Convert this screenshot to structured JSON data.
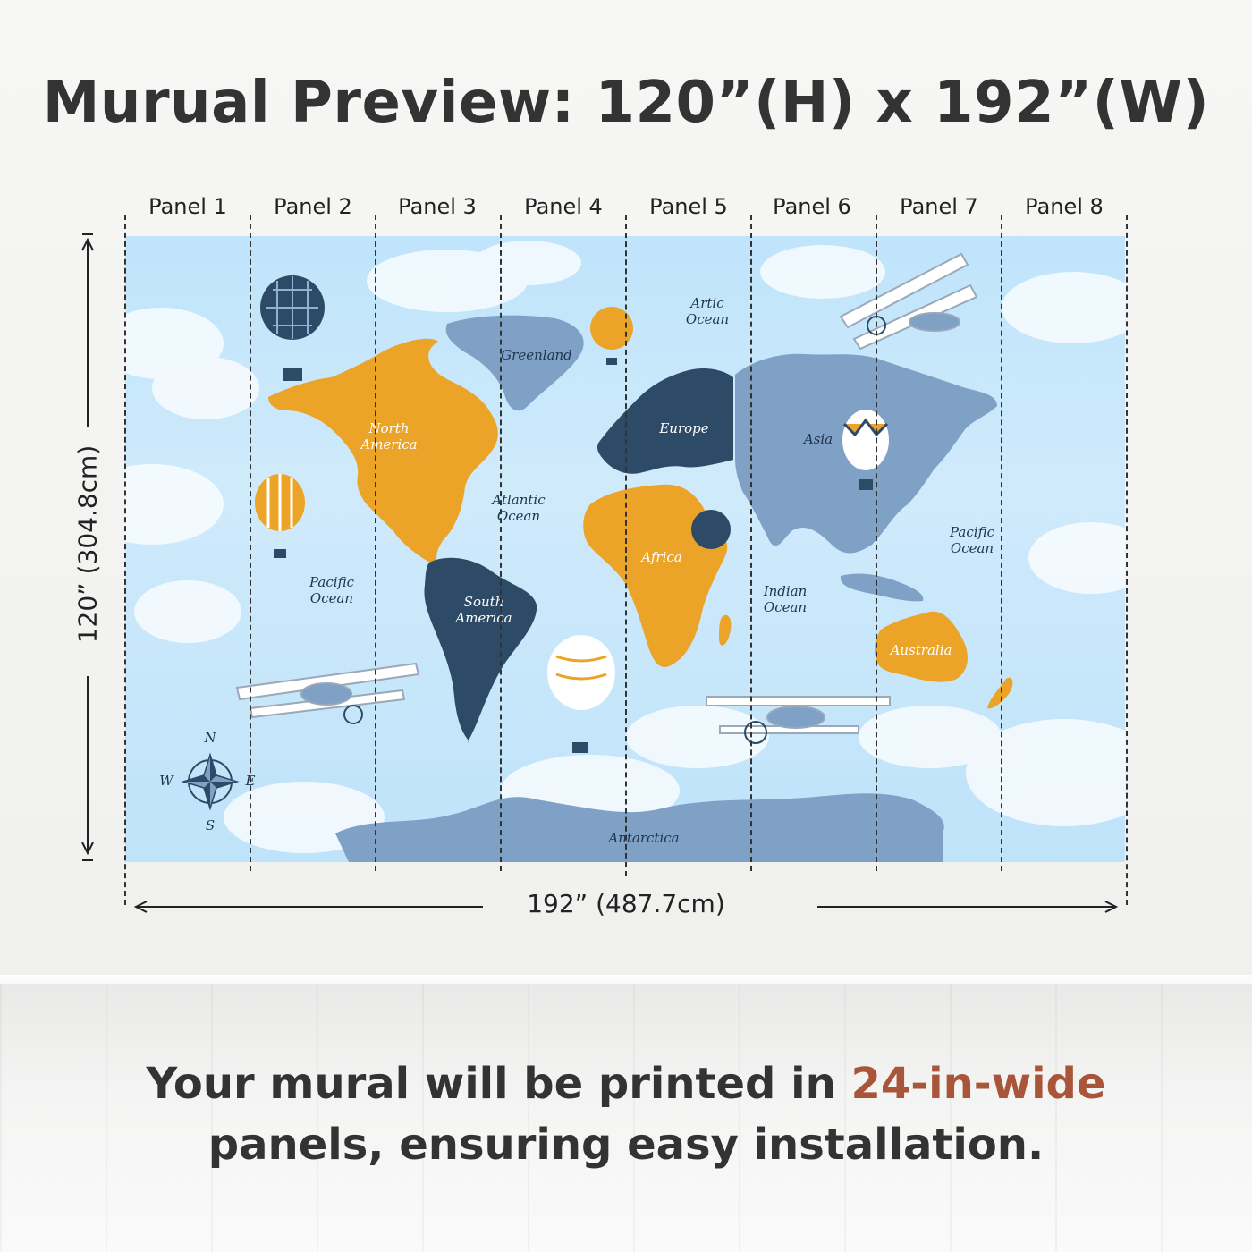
{
  "title": "Murual Preview: 120”(H) x 192”(W)",
  "panels": [
    "Panel 1",
    "Panel 2",
    "Panel 3",
    "Panel 4",
    "Panel 5",
    "Panel 6",
    "Panel 7",
    "Panel 8"
  ],
  "height_dimension": "120” (304.8cm)",
  "width_dimension": "192” (487.7cm)",
  "map_labels": {
    "north_america": "North America",
    "south_america": "South America",
    "europe": "Europe",
    "africa": "Africa",
    "asia": "Asia",
    "australia": "Australia",
    "antarctica": "Antarctica",
    "greenland": "Greenland",
    "arctic_ocean": "Artic Ocean",
    "atlantic_ocean": "Atlantic Ocean",
    "pacific_ocean_left": "Pacific Ocean",
    "pacific_ocean_right": "Pacific Ocean",
    "indian_ocean": "Indian Ocean"
  },
  "compass": {
    "n": "N",
    "s": "S",
    "e": "E",
    "w": "W"
  },
  "footer": {
    "line1_before": "Your mural will be printed in ",
    "line1_accent": "24-in-wide",
    "line2": "panels, ensuring easy installation."
  },
  "colors": {
    "sky": "#c6e6fb",
    "orange": "#eba427",
    "navy": "#2d4a66",
    "slate_blue": "#7fa1c6",
    "accent_text": "#a8553a"
  }
}
